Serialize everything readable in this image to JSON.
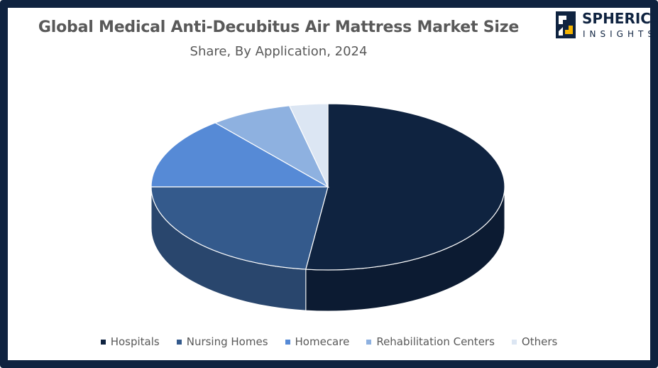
{
  "logo": {
    "word1": "SPHERICAL",
    "word2": "INSIGHTS",
    "color": "#0f2340"
  },
  "chart_data": {
    "type": "pie",
    "title": "Global Medical Anti-Decubitus Air Mattress Market Size",
    "subtitle": "Share, By Application, 2024",
    "style": "3d",
    "legend_position": "bottom",
    "categories": [
      "Hospitals",
      "Nursing Homes",
      "Homecare",
      "Rehabilitation Centers",
      "Others"
    ],
    "values": [
      52,
      23,
      14,
      7.5,
      3.5
    ],
    "colors": [
      "#0f2340",
      "#345a8c",
      "#568ad6",
      "#8eb1e0",
      "#dce6f3"
    ]
  }
}
